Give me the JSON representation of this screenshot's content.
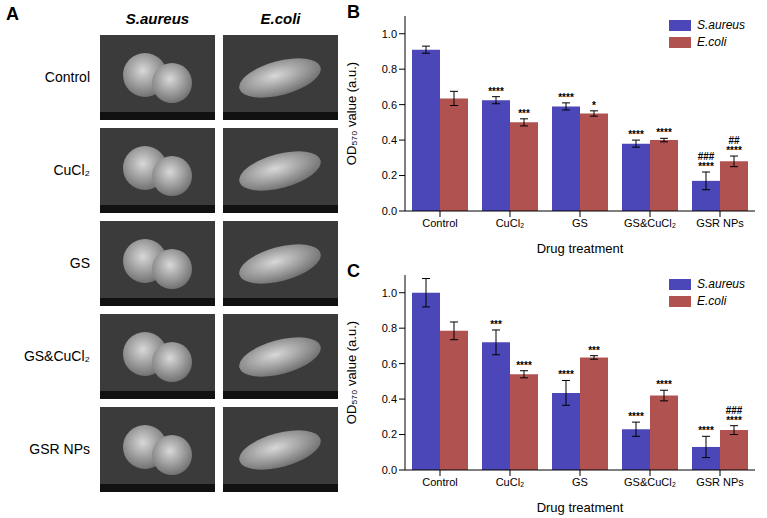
{
  "image_grid": {
    "panel_label": "A",
    "columns": [
      "S.aureus",
      "E.coli"
    ],
    "rows": [
      "Control",
      "CuCl₂",
      "GS",
      "GS&CuCl₂",
      "GSR NPs"
    ]
  },
  "chart_data": [
    {
      "type": "bar",
      "panel_label": "B",
      "x_label": "Drug treatment",
      "y_label": "OD₅₇₀ value (a.u.)",
      "categories": [
        "Control",
        "CuCl₂",
        "GS",
        "GS&CuCl₂",
        "GSR NPs"
      ],
      "ylim": [
        0,
        1.1
      ],
      "yticks": [
        {
          "value": 0,
          "label": "0.0"
        },
        0.2,
        0.4,
        0.6,
        0.8,
        {
          "value": 1,
          "label": "1.0"
        }
      ],
      "legend": "upper right",
      "series": [
        {
          "name": "S.aureus",
          "color": "#4b47b8",
          "values": [
            0.91,
            0.625,
            0.59,
            0.38,
            0.17
          ],
          "errors": [
            0.02,
            0.02,
            0.02,
            0.02,
            0.05
          ],
          "significance": [
            null,
            "****",
            "****",
            "****",
            "****"
          ],
          "significance_vs_mix": [
            null,
            null,
            null,
            null,
            "###"
          ]
        },
        {
          "name": "E.coli",
          "color": "#b0524f",
          "values": [
            0.635,
            0.5,
            0.55,
            0.4,
            0.28
          ],
          "errors": [
            0.04,
            0.02,
            0.015,
            0.01,
            0.03
          ],
          "significance": [
            null,
            "***",
            "*",
            "****",
            "****"
          ],
          "significance_vs_mix": [
            null,
            null,
            null,
            null,
            "##"
          ]
        }
      ]
    },
    {
      "type": "bar",
      "panel_label": "C",
      "x_label": "Drug treatment",
      "y_label": "OD₅₇₀ value (a.u.)",
      "categories": [
        "Control",
        "CuCl₂",
        "GS",
        "GS&CuCl₂",
        "GSR NPs"
      ],
      "ylim": [
        0,
        1.1
      ],
      "yticks": [
        {
          "value": 0,
          "label": "0.0"
        },
        0.2,
        0.4,
        0.6,
        0.8,
        {
          "value": 1,
          "label": "1.0"
        }
      ],
      "legend": "upper right",
      "series": [
        {
          "name": "S.aureus",
          "color": "#4b47b8",
          "values": [
            1.0,
            0.72,
            0.435,
            0.23,
            0.13
          ],
          "errors": [
            0.08,
            0.07,
            0.07,
            0.04,
            0.06
          ],
          "significance": [
            null,
            "***",
            "****",
            "****",
            "****"
          ],
          "significance_vs_mix": [
            null,
            null,
            null,
            null,
            null
          ]
        },
        {
          "name": "E.coli",
          "color": "#b0524f",
          "values": [
            0.785,
            0.54,
            0.635,
            0.42,
            0.225
          ],
          "errors": [
            0.05,
            0.02,
            0.01,
            0.03,
            0.025
          ],
          "significance": [
            null,
            "****",
            "***",
            "****",
            "****"
          ],
          "significance_vs_mix": [
            null,
            null,
            null,
            null,
            "###"
          ]
        }
      ]
    }
  ]
}
